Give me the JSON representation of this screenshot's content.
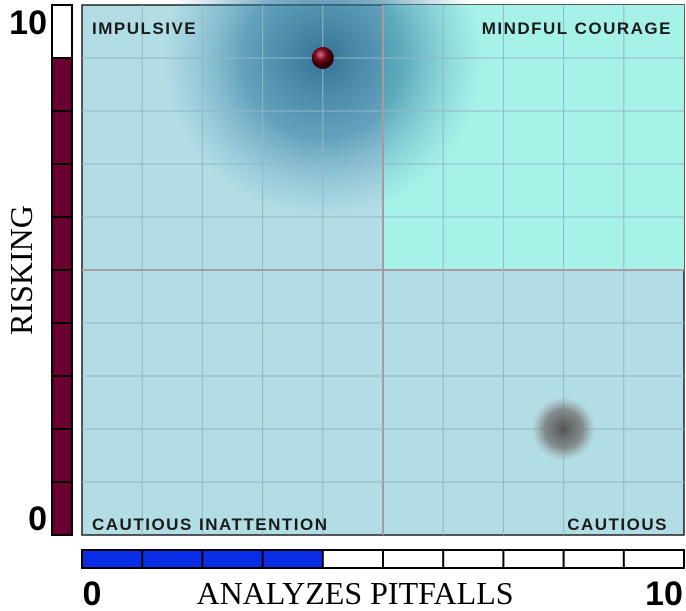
{
  "chart_data": {
    "type": "scatter",
    "xlabel": "ANALYZES PITFALLS",
    "ylabel": "RISKING",
    "xlim": [
      0,
      10
    ],
    "ylim": [
      0,
      10
    ],
    "xticks": [
      0,
      10
    ],
    "yticks": [
      0,
      10
    ],
    "quadrant_labels": {
      "top_left": "IMPULSIVE",
      "top_right": "MINDFUL COURAGE",
      "bottom_left": "CAUTIOUS INATTENTION",
      "bottom_right": "CAUTIOUS"
    },
    "x": [
      4,
      8
    ],
    "y": [
      9,
      2
    ],
    "x_score": 4,
    "y_score": 9,
    "x_score_color": "#0a2ee8",
    "y_score_color": "#6b0030"
  }
}
